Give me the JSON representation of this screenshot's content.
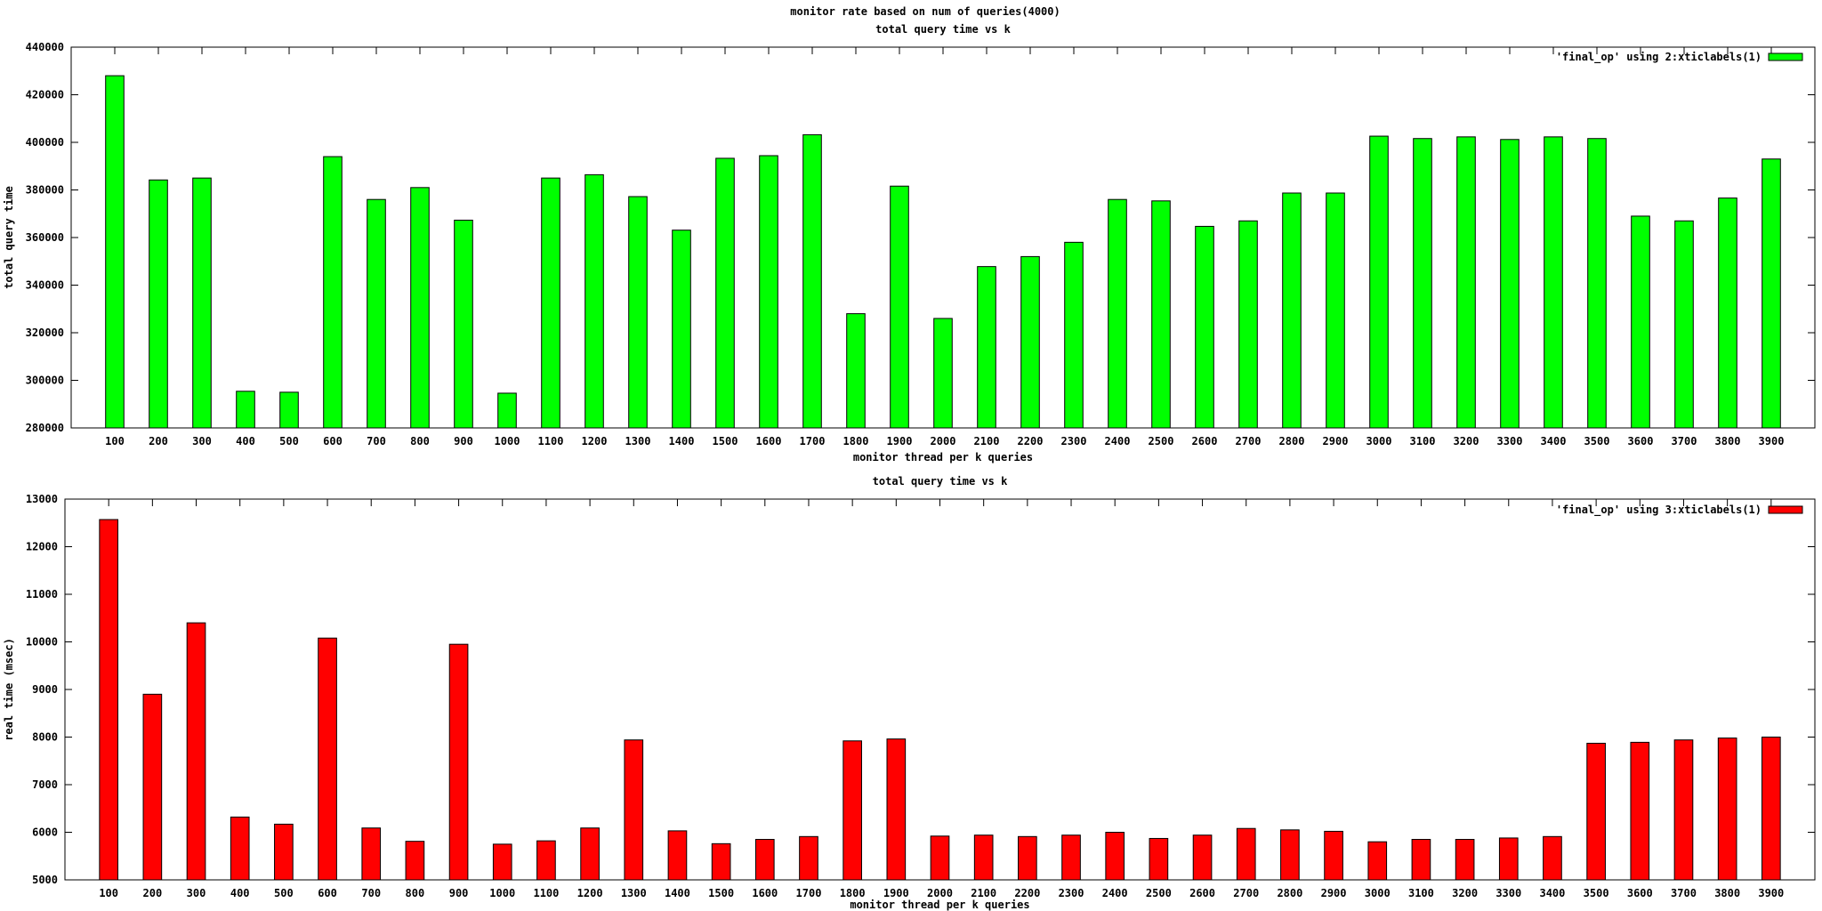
{
  "page": {
    "main_title": "monitor rate based on num of queries(4000)"
  },
  "chart_data": [
    {
      "type": "bar",
      "title": "total query time vs k",
      "xlabel": "monitor thread per k queries",
      "ylabel": "total query time",
      "ylim": [
        280000,
        440000
      ],
      "yticks": [
        280000,
        300000,
        320000,
        340000,
        360000,
        380000,
        400000,
        420000,
        440000
      ],
      "grid": false,
      "legend_position": "top-right",
      "categories": [
        "100",
        "200",
        "300",
        "400",
        "500",
        "600",
        "700",
        "800",
        "900",
        "1000",
        "1100",
        "1200",
        "1300",
        "1400",
        "1500",
        "1600",
        "1700",
        "1800",
        "1900",
        "2000",
        "2100",
        "2200",
        "2300",
        "2400",
        "2500",
        "2600",
        "2700",
        "2800",
        "2900",
        "3000",
        "3100",
        "3200",
        "3300",
        "3400",
        "3500",
        "3600",
        "3700",
        "3800",
        "3900"
      ],
      "series": [
        {
          "name": "'final_op' using 2:xticlabels(1)",
          "color": "#00ff00",
          "values": [
            428000,
            384200,
            385000,
            295400,
            295000,
            394000,
            376000,
            381000,
            367300,
            294600,
            385000,
            386400,
            377200,
            363100,
            393300,
            394400,
            403200,
            328000,
            381600,
            326000,
            347800,
            352000,
            358000,
            376000,
            375400,
            364700,
            367000,
            378700,
            378700,
            402600,
            401600,
            402300,
            401200,
            402300,
            401600,
            369000,
            367000,
            376600,
            393000
          ]
        }
      ]
    },
    {
      "type": "bar",
      "title": "total query time vs k",
      "xlabel": "monitor thread per k queries",
      "ylabel": "real time (msec)",
      "ylim": [
        5000,
        13000
      ],
      "yticks": [
        5000,
        6000,
        7000,
        8000,
        9000,
        10000,
        11000,
        12000,
        13000
      ],
      "grid": false,
      "legend_position": "top-right",
      "categories": [
        "100",
        "200",
        "300",
        "400",
        "500",
        "600",
        "700",
        "800",
        "900",
        "1000",
        "1100",
        "1200",
        "1300",
        "1400",
        "1500",
        "1600",
        "1700",
        "1800",
        "1900",
        "2000",
        "2100",
        "2200",
        "2300",
        "2400",
        "2500",
        "2600",
        "2700",
        "2800",
        "2900",
        "3000",
        "3100",
        "3200",
        "3300",
        "3400",
        "3500",
        "3600",
        "3700",
        "3800",
        "3900"
      ],
      "series": [
        {
          "name": "'final_op' using 3:xticlabels(1)",
          "color": "#ff0000",
          "values": [
            12570,
            8900,
            10400,
            6320,
            6170,
            10080,
            6090,
            5810,
            9950,
            5750,
            5820,
            6090,
            7940,
            6030,
            5760,
            5850,
            5910,
            7920,
            7960,
            5920,
            5940,
            5910,
            5940,
            6000,
            5870,
            5940,
            6080,
            6050,
            6020,
            5800,
            5850,
            5850,
            5880,
            5910,
            7870,
            7890,
            7940,
            7980,
            8000
          ]
        }
      ]
    }
  ]
}
